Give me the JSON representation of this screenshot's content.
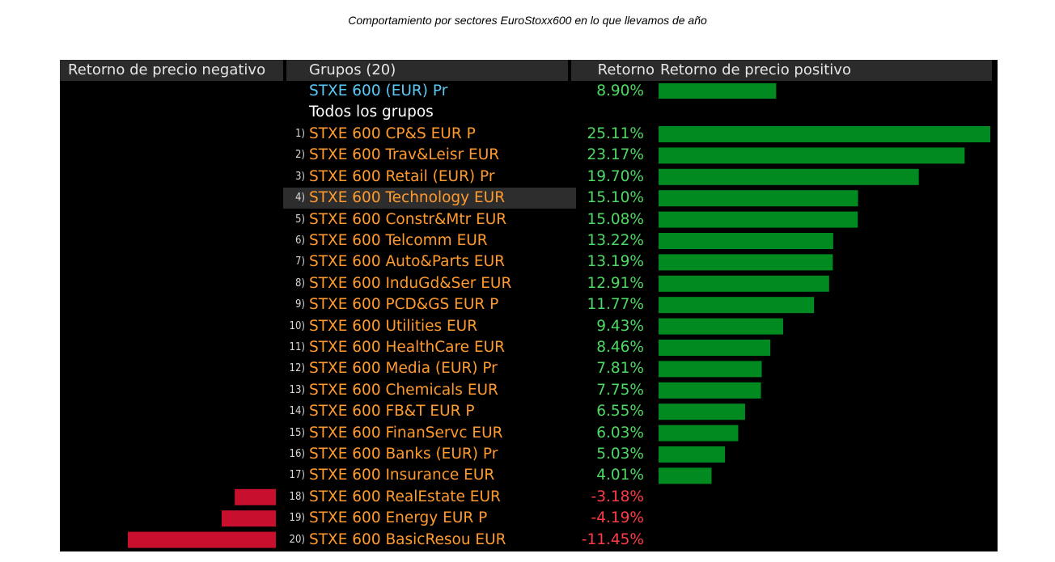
{
  "caption": "Comportamiento por sectores EuroStoxx600 en lo que llevamos de año",
  "headers": {
    "negative": "Retorno de precio negativo",
    "groups": "Grupos (20)",
    "return": "Retorno",
    "positive": "Retorno de precio positivo"
  },
  "index_row": {
    "name": "STXE 600 (EUR) Pr",
    "return": "8.90%",
    "value": 8.9
  },
  "all_groups_label": "Todos los grupos",
  "colors": {
    "positive_text": "#4cd964",
    "negative_text": "#ff3b47",
    "positive_bar": "#008a20",
    "negative_bar": "#c8102e",
    "group_text": "#ff9a2e",
    "index_text": "#5bc8f5"
  },
  "chart_data": {
    "type": "bar",
    "orientation": "horizontal",
    "categories": [
      "STXE 600 CP&S EUR P",
      "STXE 600 Trav&Leisr EUR",
      "STXE 600 Retail (EUR) Pr",
      "STXE 600 Technology EUR",
      "STXE 600 Constr&Mtr EUR",
      "STXE 600 Telcomm EUR",
      "STXE 600 Auto&Parts EUR",
      "STXE 600 InduGd&Ser EUR",
      "STXE 600 PCD&GS EUR P",
      "STXE 600 Utilities EUR",
      "STXE 600 HealthCare EUR",
      "STXE 600 Media (EUR) Pr",
      "STXE 600 Chemicals EUR",
      "STXE 600 FB&T EUR P",
      "STXE 600 FinanServc EUR",
      "STXE 600 Banks (EUR) Pr",
      "STXE 600 Insurance EUR",
      "STXE 600 RealEstate EUR",
      "STXE 600 Energy EUR P",
      "STXE 600 BasicResou EUR"
    ],
    "ranks": [
      "1)",
      "2)",
      "3)",
      "4)",
      "5)",
      "6)",
      "7)",
      "8)",
      "9)",
      "10)",
      "11)",
      "12)",
      "13)",
      "14)",
      "15)",
      "16)",
      "17)",
      "18)",
      "19)",
      "20)"
    ],
    "labels": [
      "25.11%",
      "23.17%",
      "19.70%",
      "15.10%",
      "15.08%",
      "13.22%",
      "13.19%",
      "12.91%",
      "11.77%",
      "9.43%",
      "8.46%",
      "7.81%",
      "7.75%",
      "6.55%",
      "6.03%",
      "5.03%",
      "4.01%",
      "-3.18%",
      "-4.19%",
      "-11.45%"
    ],
    "values": [
      25.11,
      23.17,
      19.7,
      15.1,
      15.08,
      13.22,
      13.19,
      12.91,
      11.77,
      9.43,
      8.46,
      7.81,
      7.75,
      6.55,
      6.03,
      5.03,
      4.01,
      -3.18,
      -4.19,
      -11.45
    ],
    "highlighted_index": 3
  }
}
